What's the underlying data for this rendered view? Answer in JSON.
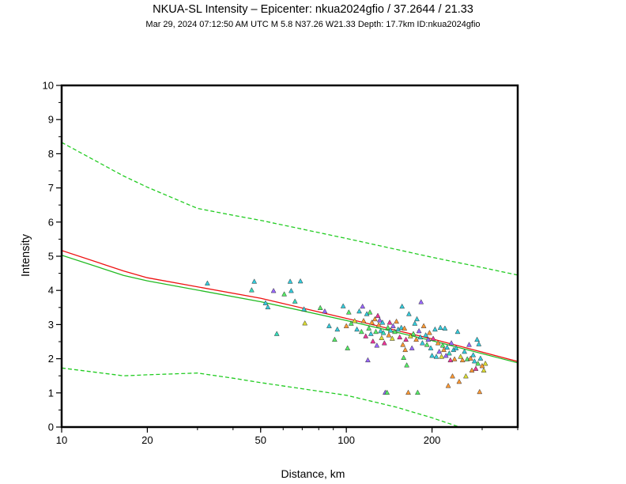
{
  "chart_data": {
    "type": "scatter",
    "title": "NKUA-SL Intensity –  Epicenter: nkua2024gfio / 37.2644 / 21.33",
    "subtitle": "Mar 29, 2024 07:12:50 AM UTC   M 5.8   N37.26 W21.33   Depth: 17.7km   ID:nkua2024gfio",
    "xlabel": "Distance, km",
    "ylabel": "Intensity",
    "xscale": "log",
    "xlim": [
      10,
      400
    ],
    "ylim": [
      0,
      10
    ],
    "xticks": [
      10,
      20,
      50,
      100,
      200
    ],
    "xtick_labels": [
      "10",
      "20",
      "50",
      "100",
      "200"
    ],
    "yticks": [
      0,
      1,
      2,
      3,
      4,
      5,
      6,
      7,
      8,
      9,
      10
    ],
    "ytick_labels": [
      "0",
      "1",
      "2",
      "3",
      "4",
      "5",
      "6",
      "7",
      "8",
      "9",
      "10"
    ],
    "grid": false,
    "colors": {
      "gmpe_mean": "#ee1111",
      "ipe_mean": "#22bb22",
      "ipe_bounds": "#22cc22",
      "marker_edge": "#333333"
    },
    "lines": [
      {
        "name": "GMPE mean",
        "style": "solid",
        "color": "#ee1111",
        "x": [
          10,
          16.5,
          20,
          50,
          100,
          200,
          400
        ],
        "y": [
          5.17,
          4.57,
          4.37,
          3.77,
          3.18,
          2.58,
          1.92
        ]
      },
      {
        "name": "IPE mean",
        "style": "solid",
        "color": "#22bb22",
        "x": [
          10,
          16.5,
          20,
          50,
          100,
          200,
          400
        ],
        "y": [
          5.03,
          4.44,
          4.28,
          3.67,
          3.12,
          2.53,
          1.88
        ]
      },
      {
        "name": "IPE +sigma",
        "style": "dashed",
        "color": "#22cc22",
        "x": [
          10,
          16.5,
          20,
          30,
          40,
          50,
          100,
          150,
          200,
          300,
          400
        ],
        "y": [
          8.33,
          7.35,
          7.02,
          6.4,
          6.2,
          6.05,
          5.52,
          5.2,
          4.97,
          4.67,
          4.45
        ]
      },
      {
        "name": "IPE -sigma",
        "style": "dashed",
        "color": "#22cc22",
        "x": [
          10,
          16.5,
          20,
          30,
          40,
          50,
          100,
          150,
          200,
          250
        ],
        "y": [
          1.73,
          1.5,
          1.53,
          1.58,
          1.43,
          1.3,
          0.93,
          0.58,
          0.27,
          0.0
        ]
      }
    ],
    "stations": {
      "marker": "triangle",
      "points": [
        {
          "x": 32.5,
          "y": 4.2,
          "c": "#33ccdd"
        },
        {
          "x": 46.5,
          "y": 4.0,
          "c": "#33ddbb"
        },
        {
          "x": 47.5,
          "y": 4.25,
          "c": "#33ccdd"
        },
        {
          "x": 52.0,
          "y": 3.62,
          "c": "#33ccdd"
        },
        {
          "x": 53.0,
          "y": 3.5,
          "c": "#33ccdd"
        },
        {
          "x": 55.5,
          "y": 3.98,
          "c": "#9966ff"
        },
        {
          "x": 57.0,
          "y": 2.72,
          "c": "#33ddbb"
        },
        {
          "x": 60.5,
          "y": 3.88,
          "c": "#55ee66"
        },
        {
          "x": 63.5,
          "y": 4.25,
          "c": "#33ccdd"
        },
        {
          "x": 64.0,
          "y": 3.98,
          "c": "#33ccdd"
        },
        {
          "x": 66.0,
          "y": 3.67,
          "c": "#33ddbb"
        },
        {
          "x": 69.0,
          "y": 4.26,
          "c": "#33ccdd"
        },
        {
          "x": 71.0,
          "y": 3.44,
          "c": "#33ccdd"
        },
        {
          "x": 71.5,
          "y": 3.03,
          "c": "#dddd33"
        },
        {
          "x": 81.0,
          "y": 3.48,
          "c": "#55ee66"
        },
        {
          "x": 84.0,
          "y": 3.38,
          "c": "#9966ff"
        },
        {
          "x": 87.0,
          "y": 2.95,
          "c": "#33ccdd"
        },
        {
          "x": 91.0,
          "y": 2.55,
          "c": "#55ee66"
        },
        {
          "x": 93.0,
          "y": 2.85,
          "c": "#33ccdd"
        },
        {
          "x": 97.5,
          "y": 3.53,
          "c": "#33ccdd"
        },
        {
          "x": 100.0,
          "y": 2.95,
          "c": "#ff9933"
        },
        {
          "x": 101.0,
          "y": 2.3,
          "c": "#55ee66"
        },
        {
          "x": 102.0,
          "y": 3.35,
          "c": "#55ee66"
        },
        {
          "x": 104.0,
          "y": 3.02,
          "c": "#55ee66"
        },
        {
          "x": 107.0,
          "y": 3.1,
          "c": "#dddd33"
        },
        {
          "x": 109.0,
          "y": 2.85,
          "c": "#33ccdd"
        },
        {
          "x": 111.0,
          "y": 3.38,
          "c": "#33ccdd"
        },
        {
          "x": 113.0,
          "y": 2.78,
          "c": "#55ee66"
        },
        {
          "x": 114.0,
          "y": 3.52,
          "c": "#9966ff"
        },
        {
          "x": 115.0,
          "y": 3.1,
          "c": "#ff9933"
        },
        {
          "x": 117.0,
          "y": 2.65,
          "c": "#ee3399"
        },
        {
          "x": 118.0,
          "y": 3.3,
          "c": "#33ccdd"
        },
        {
          "x": 119.0,
          "y": 1.95,
          "c": "#9966ff"
        },
        {
          "x": 120.0,
          "y": 2.88,
          "c": "#55ee66"
        },
        {
          "x": 121.0,
          "y": 3.35,
          "c": "#55ee66"
        },
        {
          "x": 122.0,
          "y": 2.72,
          "c": "#33ccdd"
        },
        {
          "x": 123.0,
          "y": 3.05,
          "c": "#ff9933"
        },
        {
          "x": 124.0,
          "y": 2.5,
          "c": "#ee3399"
        },
        {
          "x": 126.0,
          "y": 3.15,
          "c": "#ff9933"
        },
        {
          "x": 127.0,
          "y": 2.78,
          "c": "#55ee66"
        },
        {
          "x": 128.0,
          "y": 2.38,
          "c": "#9966ff"
        },
        {
          "x": 129.0,
          "y": 3.25,
          "c": "#ee3399"
        },
        {
          "x": 130.0,
          "y": 2.98,
          "c": "#ff9933"
        },
        {
          "x": 131.0,
          "y": 3.12,
          "c": "#9966ff"
        },
        {
          "x": 132.0,
          "y": 2.8,
          "c": "#33ccdd"
        },
        {
          "x": 133.0,
          "y": 2.6,
          "c": "#dddd33"
        },
        {
          "x": 134.0,
          "y": 3.05,
          "c": "#33ccdd"
        },
        {
          "x": 135.0,
          "y": 2.75,
          "c": "#33ddbb"
        },
        {
          "x": 136.0,
          "y": 2.45,
          "c": "#ee3399"
        },
        {
          "x": 137.0,
          "y": 1.0,
          "c": "#9966ff"
        },
        {
          "x": 139.0,
          "y": 1.0,
          "c": "#55ee66"
        },
        {
          "x": 140.0,
          "y": 2.9,
          "c": "#55ee66"
        },
        {
          "x": 141.0,
          "y": 2.68,
          "c": "#ff9933"
        },
        {
          "x": 142.0,
          "y": 3.05,
          "c": "#ee3399"
        },
        {
          "x": 143.0,
          "y": 2.82,
          "c": "#33ccdd"
        },
        {
          "x": 145.0,
          "y": 2.58,
          "c": "#dddd33"
        },
        {
          "x": 146.0,
          "y": 2.95,
          "c": "#9966ff"
        },
        {
          "x": 148.0,
          "y": 2.78,
          "c": "#55ee66"
        },
        {
          "x": 150.0,
          "y": 3.08,
          "c": "#ff9933"
        },
        {
          "x": 152.0,
          "y": 2.85,
          "c": "#33ccdd"
        },
        {
          "x": 154.0,
          "y": 2.62,
          "c": "#ee3399"
        },
        {
          "x": 156.0,
          "y": 2.9,
          "c": "#33ccdd"
        },
        {
          "x": 157.0,
          "y": 3.52,
          "c": "#33ccdd"
        },
        {
          "x": 158.0,
          "y": 2.4,
          "c": "#ff9933"
        },
        {
          "x": 159.0,
          "y": 2.02,
          "c": "#55ee66"
        },
        {
          "x": 160.0,
          "y": 2.88,
          "c": "#ff9933"
        },
        {
          "x": 161.0,
          "y": 2.25,
          "c": "#ff9933"
        },
        {
          "x": 162.0,
          "y": 2.55,
          "c": "#ee3399"
        },
        {
          "x": 163.0,
          "y": 1.8,
          "c": "#55ee66"
        },
        {
          "x": 165.0,
          "y": 1.0,
          "c": "#ff9933"
        },
        {
          "x": 166.0,
          "y": 3.3,
          "c": "#33ccdd"
        },
        {
          "x": 168.0,
          "y": 2.65,
          "c": "#dddd33"
        },
        {
          "x": 170.0,
          "y": 2.3,
          "c": "#9966ff"
        },
        {
          "x": 172.0,
          "y": 2.72,
          "c": "#55ee66"
        },
        {
          "x": 174.0,
          "y": 3.02,
          "c": "#33ccdd"
        },
        {
          "x": 176.0,
          "y": 2.55,
          "c": "#ff9933"
        },
        {
          "x": 177.0,
          "y": 3.15,
          "c": "#33ccdd"
        },
        {
          "x": 178.0,
          "y": 1.0,
          "c": "#55ee66"
        },
        {
          "x": 180.0,
          "y": 2.8,
          "c": "#9966ff"
        },
        {
          "x": 182.0,
          "y": 2.62,
          "c": "#33ccdd"
        },
        {
          "x": 183.0,
          "y": 3.65,
          "c": "#9966ff"
        },
        {
          "x": 185.0,
          "y": 2.45,
          "c": "#33ccdd"
        },
        {
          "x": 187.0,
          "y": 2.95,
          "c": "#ff9933"
        },
        {
          "x": 190.0,
          "y": 2.68,
          "c": "#33ccdd"
        },
        {
          "x": 192.0,
          "y": 2.4,
          "c": "#55ee66"
        },
        {
          "x": 194.0,
          "y": 2.55,
          "c": "#9966ff"
        },
        {
          "x": 196.0,
          "y": 2.75,
          "c": "#ff9933"
        },
        {
          "x": 198.0,
          "y": 2.3,
          "c": "#33ccdd"
        },
        {
          "x": 200.0,
          "y": 2.08,
          "c": "#33ccdd"
        },
        {
          "x": 202.0,
          "y": 2.58,
          "c": "#ee3399"
        },
        {
          "x": 205.0,
          "y": 2.85,
          "c": "#33ccdd"
        },
        {
          "x": 207.0,
          "y": 2.05,
          "c": "#33ccdd"
        },
        {
          "x": 210.0,
          "y": 2.45,
          "c": "#ff9933"
        },
        {
          "x": 212.0,
          "y": 2.2,
          "c": "#9966ff"
        },
        {
          "x": 214.0,
          "y": 2.9,
          "c": "#33ccdd"
        },
        {
          "x": 216.0,
          "y": 2.05,
          "c": "#dddd33"
        },
        {
          "x": 218.0,
          "y": 2.38,
          "c": "#55ee66"
        },
        {
          "x": 220.0,
          "y": 2.25,
          "c": "#ff9933"
        },
        {
          "x": 222.0,
          "y": 2.88,
          "c": "#33ccdd"
        },
        {
          "x": 224.0,
          "y": 2.08,
          "c": "#9966ff"
        },
        {
          "x": 226.0,
          "y": 2.32,
          "c": "#33ccdd"
        },
        {
          "x": 228.0,
          "y": 1.2,
          "c": "#ff9933"
        },
        {
          "x": 230.0,
          "y": 2.15,
          "c": "#33ddbb"
        },
        {
          "x": 232.0,
          "y": 1.95,
          "c": "#ee3399"
        },
        {
          "x": 234.0,
          "y": 2.45,
          "c": "#9966ff"
        },
        {
          "x": 236.0,
          "y": 1.48,
          "c": "#ff9933"
        },
        {
          "x": 238.0,
          "y": 2.25,
          "c": "#33ccdd"
        },
        {
          "x": 240.0,
          "y": 1.98,
          "c": "#ff9933"
        },
        {
          "x": 243.0,
          "y": 2.3,
          "c": "#33ccdd"
        },
        {
          "x": 246.0,
          "y": 2.78,
          "c": "#33ccdd"
        },
        {
          "x": 249.0,
          "y": 1.32,
          "c": "#ff9933"
        },
        {
          "x": 252.0,
          "y": 2.05,
          "c": "#dddd33"
        },
        {
          "x": 256.0,
          "y": 1.95,
          "c": "#ff9933"
        },
        {
          "x": 260.0,
          "y": 2.2,
          "c": "#33ccdd"
        },
        {
          "x": 263.0,
          "y": 1.48,
          "c": "#dddd33"
        },
        {
          "x": 266.0,
          "y": 1.98,
          "c": "#55ee66"
        },
        {
          "x": 270.0,
          "y": 2.4,
          "c": "#9966ff"
        },
        {
          "x": 273.0,
          "y": 2.0,
          "c": "#ff9933"
        },
        {
          "x": 276.0,
          "y": 1.65,
          "c": "#ff9933"
        },
        {
          "x": 279.0,
          "y": 2.1,
          "c": "#33ccdd"
        },
        {
          "x": 282.0,
          "y": 1.92,
          "c": "#33ccdd"
        },
        {
          "x": 285.0,
          "y": 1.7,
          "c": "#ee3399"
        },
        {
          "x": 288.0,
          "y": 2.55,
          "c": "#33ccdd"
        },
        {
          "x": 290.0,
          "y": 1.85,
          "c": "#55ee66"
        },
        {
          "x": 292.0,
          "y": 2.42,
          "c": "#33ccdd"
        },
        {
          "x": 294.0,
          "y": 1.02,
          "c": "#ff9933"
        },
        {
          "x": 296.0,
          "y": 2.0,
          "c": "#33ccdd"
        },
        {
          "x": 300.0,
          "y": 1.78,
          "c": "#ff9933"
        },
        {
          "x": 304.0,
          "y": 1.65,
          "c": "#dddd33"
        },
        {
          "x": 308.0,
          "y": 1.85,
          "c": "#dddd33"
        }
      ]
    }
  }
}
